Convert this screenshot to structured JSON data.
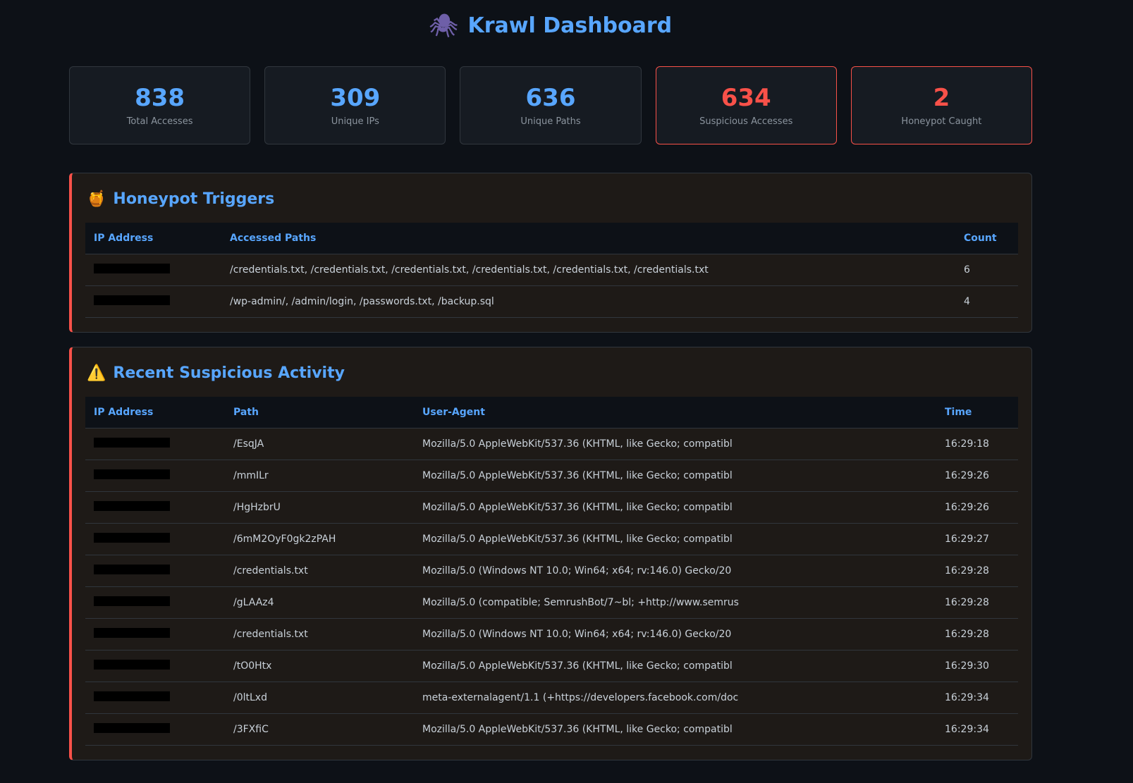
{
  "header": {
    "title": "Krawl Dashboard",
    "icon": "spider-icon"
  },
  "stats": [
    {
      "value": "838",
      "label": "Total Accesses",
      "alert": false
    },
    {
      "value": "309",
      "label": "Unique IPs",
      "alert": false
    },
    {
      "value": "636",
      "label": "Unique Paths",
      "alert": false
    },
    {
      "value": "634",
      "label": "Suspicious Accesses",
      "alert": true
    },
    {
      "value": "2",
      "label": "Honeypot Caught",
      "alert": true
    }
  ],
  "honeypot": {
    "title": "Honeypot Triggers",
    "icon": "honey-pot-icon",
    "columns": [
      "IP Address",
      "Accessed Paths",
      "Count"
    ],
    "rows": [
      {
        "ip": "[redacted]",
        "paths": "/credentials.txt, /credentials.txt, /credentials.txt, /credentials.txt, /credentials.txt, /credentials.txt",
        "count": "6"
      },
      {
        "ip": "[redacted]",
        "paths": "/wp-admin/, /admin/login, /passwords.txt, /backup.sql",
        "count": "4"
      }
    ]
  },
  "suspicious": {
    "title": "Recent Suspicious Activity",
    "icon": "warning-icon",
    "columns": [
      "IP Address",
      "Path",
      "User-Agent",
      "Time"
    ],
    "rows": [
      {
        "path": "/EsqJA",
        "ua": "Mozilla/5.0 AppleWebKit/537.36 (KHTML, like Gecko; compatibl",
        "time": "16:29:18"
      },
      {
        "path": "/mmILr",
        "ua": "Mozilla/5.0 AppleWebKit/537.36 (KHTML, like Gecko; compatibl",
        "time": "16:29:26"
      },
      {
        "path": "/HgHzbrU",
        "ua": "Mozilla/5.0 AppleWebKit/537.36 (KHTML, like Gecko; compatibl",
        "time": "16:29:26"
      },
      {
        "path": "/6mM2OyF0gk2zPAH",
        "ua": "Mozilla/5.0 AppleWebKit/537.36 (KHTML, like Gecko; compatibl",
        "time": "16:29:27"
      },
      {
        "path": "/credentials.txt",
        "ua": "Mozilla/5.0 (Windows NT 10.0; Win64; x64; rv:146.0) Gecko/20",
        "time": "16:29:28"
      },
      {
        "path": "/gLAAz4",
        "ua": "Mozilla/5.0 (compatible; SemrushBot/7~bl; +http://www.semrus",
        "time": "16:29:28"
      },
      {
        "path": "/credentials.txt",
        "ua": "Mozilla/5.0 (Windows NT 10.0; Win64; x64; rv:146.0) Gecko/20",
        "time": "16:29:28"
      },
      {
        "path": "/tO0Htx",
        "ua": "Mozilla/5.0 AppleWebKit/537.36 (KHTML, like Gecko; compatibl",
        "time": "16:29:30"
      },
      {
        "path": "/0ltLxd",
        "ua": "meta-externalagent/1.1 (+https://developers.facebook.com/doc",
        "time": "16:29:34"
      },
      {
        "path": "/3FXfiC",
        "ua": "Mozilla/5.0 AppleWebKit/537.36 (KHTML, like Gecko; compatibl",
        "time": "16:29:34"
      }
    ]
  },
  "colors": {
    "accent": "#58a6ff",
    "alert": "#f85149",
    "background": "#0d1117"
  }
}
